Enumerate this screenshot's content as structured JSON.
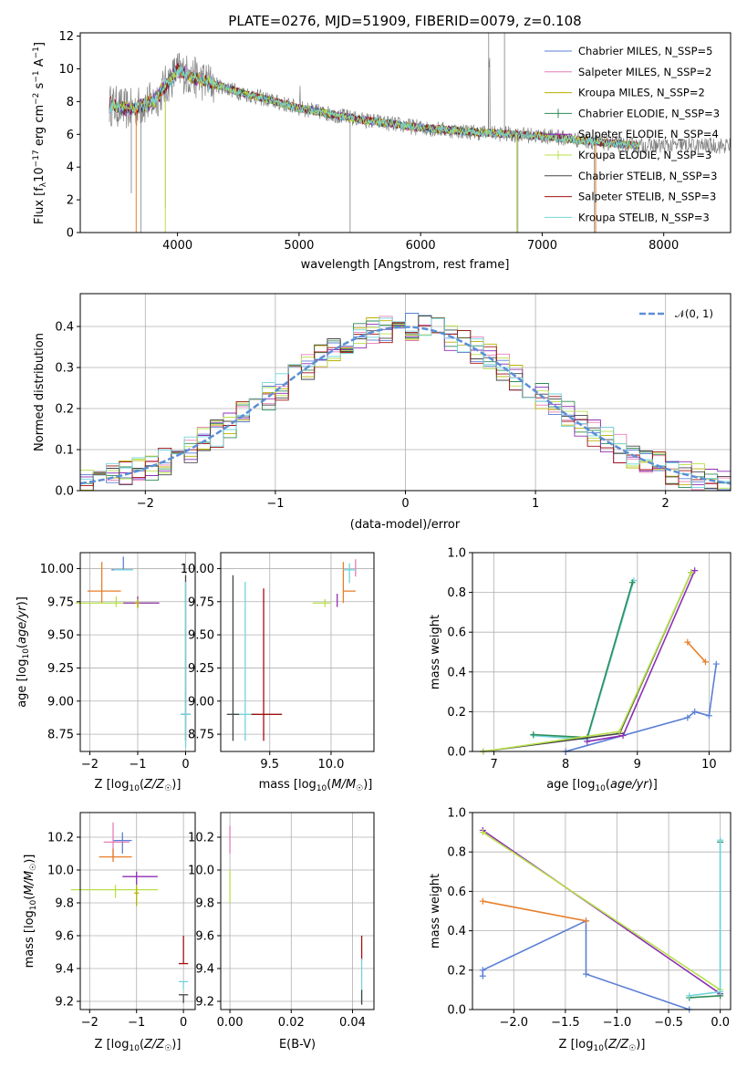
{
  "chart_data": [
    {
      "type": "line",
      "title": "PLATE=0276, MJD=51909, FIBERID=0079, z=0.108",
      "xlabel": "wavelength [Angstrom, rest frame]",
      "ylabel": "Flux [f_λ10^-17 erg cm^-2 s^-1 A^-1]",
      "xlim": [
        3200,
        8550
      ],
      "ylim": [
        0,
        12.2
      ],
      "xticks": [
        "4000",
        "5000",
        "6000",
        "7000",
        "8000"
      ],
      "yticks": [
        "0",
        "2",
        "4",
        "6",
        "8",
        "10",
        "12"
      ],
      "legend_position": "top-right",
      "series": [
        {
          "name": "Chabrier MILES, N_SSP=5",
          "color": "#5b7fd6"
        },
        {
          "name": "Salpeter MILES, N_SSP=2",
          "color": "#e37fb9"
        },
        {
          "name": "Kroupa MILES, N_SSP=2",
          "color": "#b8b100"
        },
        {
          "name": "Chabrier ELODIE, N_SSP=3",
          "color": "#2e8b57"
        },
        {
          "name": "Salpeter ELODIE, N_SSP=4",
          "color": "#8e2fb5"
        },
        {
          "name": "Kroupa ELODIE, N_SSP=3",
          "color": "#b8e04a"
        },
        {
          "name": "Chabrier STELIB, N_SSP=3",
          "color": "#444444"
        },
        {
          "name": "Salpeter STELIB, N_SSP=3",
          "color": "#a01010"
        },
        {
          "name": "Kroupa STELIB, N_SSP=3",
          "color": "#72d4dc"
        }
      ],
      "continuum": {
        "x": [
          3440,
          3600,
          3800,
          4000,
          4200,
          4500,
          5000,
          5500,
          6000,
          6500,
          7000,
          7500,
          7800
        ],
        "y": [
          7.8,
          7.5,
          8.0,
          9.9,
          9.3,
          8.6,
          7.6,
          6.9,
          6.4,
          6.1,
          5.9,
          5.5,
          5.3
        ]
      }
    },
    {
      "type": "bar",
      "xlabel": "(data-model)/error",
      "ylabel": "Normed distribution",
      "xlim": [
        -2.5,
        2.5
      ],
      "ylim": [
        0,
        0.48
      ],
      "xticks": [
        "−2",
        "−1",
        "0",
        "1",
        "2"
      ],
      "yticks": [
        "0.0",
        "0.1",
        "0.2",
        "0.3",
        "0.4"
      ],
      "legend": "𝒩(0, 1)",
      "legend_position": "top-right",
      "gaussian_color": "#5b8fd6"
    },
    {
      "type": "scatter",
      "xlabel": "Z [log10(Z/Z☉)]",
      "ylabel": "age  [log10(age/yr)]",
      "xlim": [
        -2.2,
        0.2
      ],
      "ylim": [
        8.62,
        10.12
      ],
      "xticks": [
        "−2",
        "−1",
        "0"
      ],
      "yticks": [
        "8.75",
        "9.00",
        "9.25",
        "9.50",
        "9.75",
        "10.00"
      ]
    },
    {
      "type": "scatter",
      "xlabel": "mass [log10(M/M☉)]",
      "ylabel": "",
      "xlim": [
        9.1,
        10.35
      ],
      "ylim": [
        8.62,
        10.12
      ],
      "xticks": [
        "9.5",
        "10.0"
      ],
      "yticks": [
        "8.75",
        "9.00",
        "9.25",
        "9.50",
        "9.75",
        "10.00"
      ]
    },
    {
      "type": "line",
      "xlabel": "age  [log10(age/yr)]",
      "ylabel": "mass weight",
      "xlim": [
        6.7,
        10.3
      ],
      "ylim": [
        0,
        1
      ],
      "xticks": [
        "7",
        "8",
        "9",
        "10"
      ],
      "yticks": [
        "0.0",
        "0.2",
        "0.4",
        "0.6",
        "0.8",
        "1.0"
      ]
    },
    {
      "type": "scatter",
      "xlabel": "Z [log10(Z/Z☉)]",
      "ylabel": "mass [log10(M/M☉)]",
      "xlim": [
        -2.2,
        0.25
      ],
      "ylim": [
        9.15,
        10.35
      ],
      "xticks": [
        "−2",
        "−1",
        "0"
      ],
      "yticks": [
        "9.2",
        "9.4",
        "9.6",
        "9.8",
        "10.0",
        "10.2"
      ]
    },
    {
      "type": "scatter",
      "xlabel": "E(B-V)",
      "ylabel": "",
      "xlim": [
        -0.003,
        0.047
      ],
      "ylim": [
        9.15,
        10.35
      ],
      "xticks": [
        "0.00",
        "0.02",
        "0.04"
      ],
      "yticks": [
        "9.2",
        "9.4",
        "9.6",
        "9.8",
        "10.0",
        "10.2"
      ]
    },
    {
      "type": "line",
      "xlabel": "Z [log10(Z/Z☉)]",
      "ylabel": "mass weight",
      "xlim": [
        -2.4,
        0.1
      ],
      "ylim": [
        0,
        1
      ],
      "xticks": [
        "−2.0",
        "−1.5",
        "−1.0",
        "−0.5",
        "0.0"
      ],
      "yticks": [
        "0.0",
        "0.2",
        "0.4",
        "0.6",
        "0.8",
        "1.0"
      ]
    }
  ]
}
